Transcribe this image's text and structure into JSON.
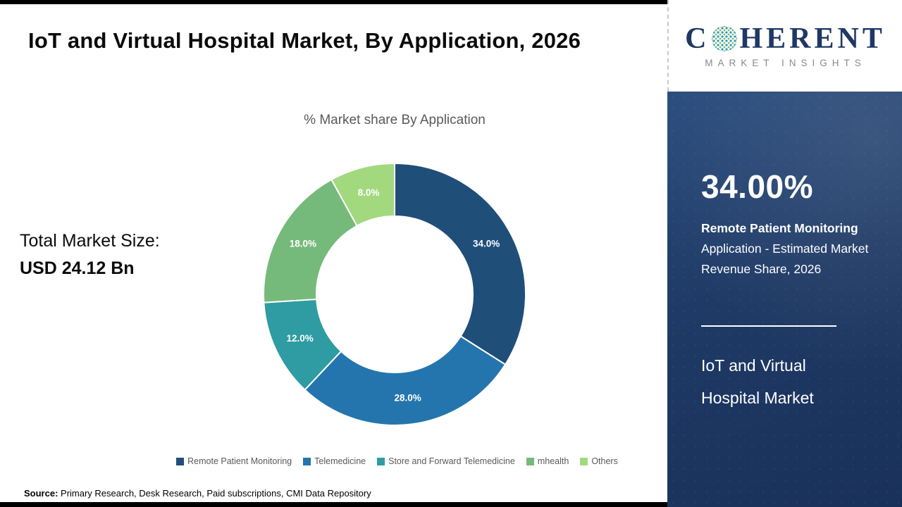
{
  "page": {
    "title": "IoT and Virtual Hospital Market, By Application, 2026",
    "total_label": "Total Market Size:",
    "total_value": "USD 24.12 Bn",
    "source_label": "Source:",
    "source_text": " Primary Research, Desk Research, Paid subscriptions, CMI Data Repository"
  },
  "logo": {
    "part1": "C",
    "part2": "HERENT",
    "subtitle": "MARKET INSIGHTS"
  },
  "sidebar": {
    "highlight_value": "34.00%",
    "highlight_bold": "Remote Patient Monitoring",
    "highlight_rest": " Application - Estimated Market Revenue Share, 2026",
    "market_name": "IoT and Virtual Hospital Market"
  },
  "chart_data": {
    "type": "pie",
    "donut": true,
    "title": "% Market share By Application",
    "categories": [
      "Remote Patient Monitoring",
      "Telemedicine",
      "Store and Forward Telemedicine",
      "mhealth",
      "Others"
    ],
    "values": [
      34.0,
      28.0,
      12.0,
      18.0,
      8.0
    ],
    "data_labels": [
      "34.0%",
      "28.0%",
      "12.0%",
      "18.0%",
      "8.0%"
    ],
    "colors": [
      "#1F4E79",
      "#2475AE",
      "#2E9CA2",
      "#76BA7B",
      "#A2D97E"
    ],
    "legend_position": "bottom",
    "start_angle_deg": 0,
    "direction": "clockwise"
  }
}
